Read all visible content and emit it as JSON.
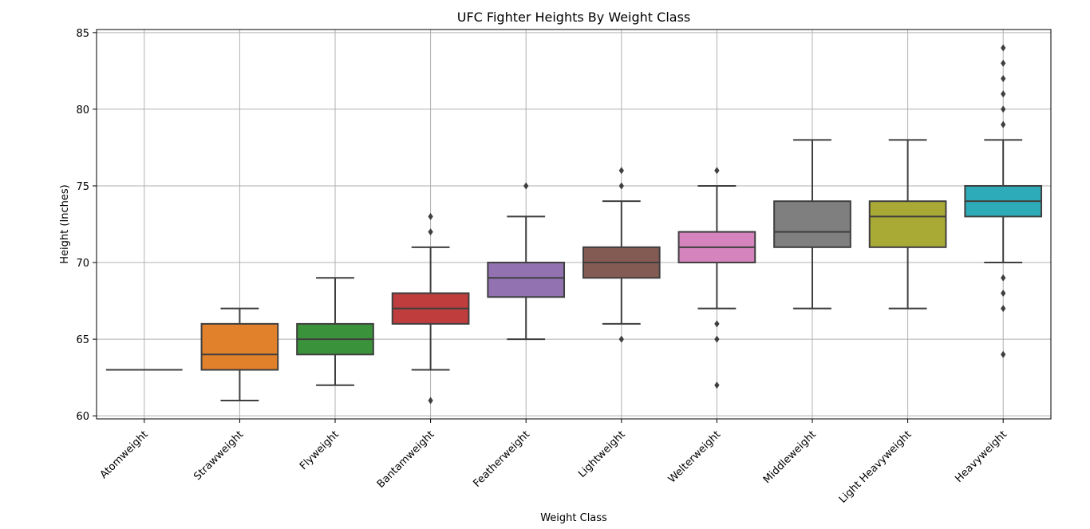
{
  "chart_data": {
    "type": "box",
    "title": "UFC Fighter Heights By Weight Class",
    "xlabel": "Weight Class",
    "ylabel": "Height (Inches)",
    "ylim": [
      59.8,
      85.2
    ],
    "yticks": [
      60,
      65,
      70,
      75,
      80,
      85
    ],
    "grid": true,
    "categories": [
      "Atomweight",
      "Strawweight",
      "Flyweight",
      "Bantamweight",
      "Featherweight",
      "Lightweight",
      "Welterweight",
      "Middleweight",
      "Light Heavyweight",
      "Heavyweight"
    ],
    "boxes": [
      {
        "category": "Atomweight",
        "color": "#3274a1",
        "whisker_low": 63,
        "q1": 63,
        "median": 63,
        "q3": 63,
        "whisker_high": 63,
        "outliers": []
      },
      {
        "category": "Strawweight",
        "color": "#e1812c",
        "whisker_low": 61,
        "q1": 63,
        "median": 64,
        "q3": 66,
        "whisker_high": 67,
        "outliers": []
      },
      {
        "category": "Flyweight",
        "color": "#3a923a",
        "whisker_low": 62,
        "q1": 64,
        "median": 65,
        "q3": 66,
        "whisker_high": 69,
        "outliers": []
      },
      {
        "category": "Bantamweight",
        "color": "#c03d3e",
        "whisker_low": 63,
        "q1": 66,
        "median": 67,
        "q3": 68,
        "whisker_high": 71,
        "outliers": [
          61,
          72,
          73
        ]
      },
      {
        "category": "Featherweight",
        "color": "#9372b2",
        "whisker_low": 65,
        "q1": 67.75,
        "median": 69,
        "q3": 70,
        "whisker_high": 73,
        "outliers": [
          75
        ]
      },
      {
        "category": "Lightweight",
        "color": "#845b53",
        "whisker_low": 66,
        "q1": 69,
        "median": 70,
        "q3": 71,
        "whisker_high": 74,
        "outliers": [
          65,
          75,
          76
        ]
      },
      {
        "category": "Welterweight",
        "color": "#d684bd",
        "whisker_low": 67,
        "q1": 70,
        "median": 71,
        "q3": 72,
        "whisker_high": 75,
        "outliers": [
          62,
          65,
          66,
          76
        ]
      },
      {
        "category": "Middleweight",
        "color": "#7f7f7f",
        "whisker_low": 67,
        "q1": 71,
        "median": 72,
        "q3": 74,
        "whisker_high": 78,
        "outliers": []
      },
      {
        "category": "Light Heavyweight",
        "color": "#a9aa35",
        "whisker_low": 67,
        "q1": 71,
        "median": 73,
        "q3": 74,
        "whisker_high": 78,
        "outliers": []
      },
      {
        "category": "Heavyweight",
        "color": "#2eabb8",
        "whisker_low": 70,
        "q1": 73,
        "median": 74,
        "q3": 75,
        "whisker_high": 78,
        "outliers": [
          64,
          67,
          68,
          69,
          79,
          80,
          81,
          82,
          83,
          84
        ]
      }
    ]
  }
}
